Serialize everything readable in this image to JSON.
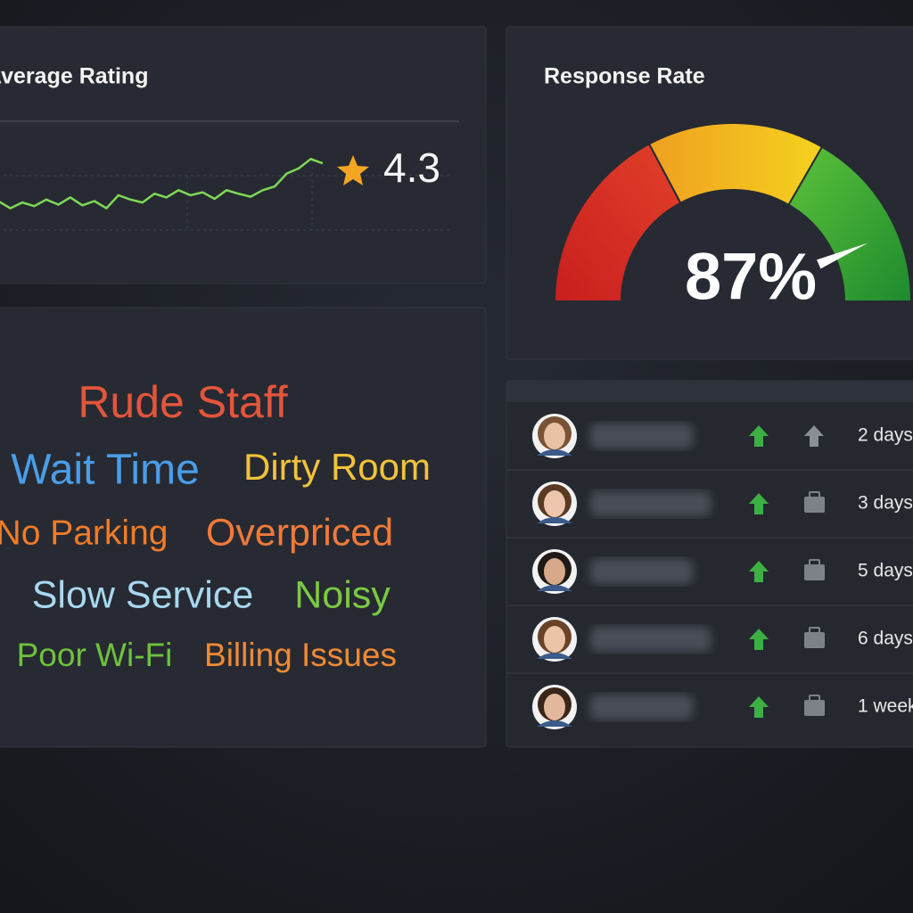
{
  "rating": {
    "title": "Average Rating",
    "value": 4.3,
    "trend": {
      "values": [
        3.4,
        3.3,
        3.38,
        3.33,
        3.42,
        3.35,
        3.45,
        3.34,
        3.4,
        3.3,
        3.48,
        3.42,
        3.38,
        3.5,
        3.45,
        3.55,
        3.48,
        3.52,
        3.43,
        3.55,
        3.5,
        3.46,
        3.55,
        3.6,
        3.78,
        3.85,
        3.98,
        3.92
      ],
      "ylim": [
        3.0,
        4.5
      ],
      "color": "#7ed957"
    }
  },
  "response": {
    "title": "Response Rate",
    "value": 87,
    "value_label": "87%",
    "min": 0,
    "max": 100
  },
  "issues": {
    "words": [
      {
        "text": "Rude Staff",
        "color": "#e4553b"
      },
      {
        "text": "Wait Time",
        "color": "#4a9de8"
      },
      {
        "text": "Dirty Room",
        "color": "#f2c23a"
      },
      {
        "text": "No Parking",
        "color": "#f07c2a"
      },
      {
        "text": "Overpriced",
        "color": "#f07a3a"
      },
      {
        "text": "Slow Service",
        "color": "#a8d8f0"
      },
      {
        "text": "Noisy",
        "color": "#7ac943"
      },
      {
        "text": "Poor Wi-Fi",
        "color": "#6fc23c"
      },
      {
        "text": "Billing Issues",
        "color": "#f08a34"
      }
    ]
  },
  "reviews": {
    "rows": [
      {
        "time": "2 days"
      },
      {
        "time": "3 days"
      },
      {
        "time": "5 days"
      },
      {
        "time": "6 days"
      },
      {
        "time": "1 week"
      }
    ]
  }
}
